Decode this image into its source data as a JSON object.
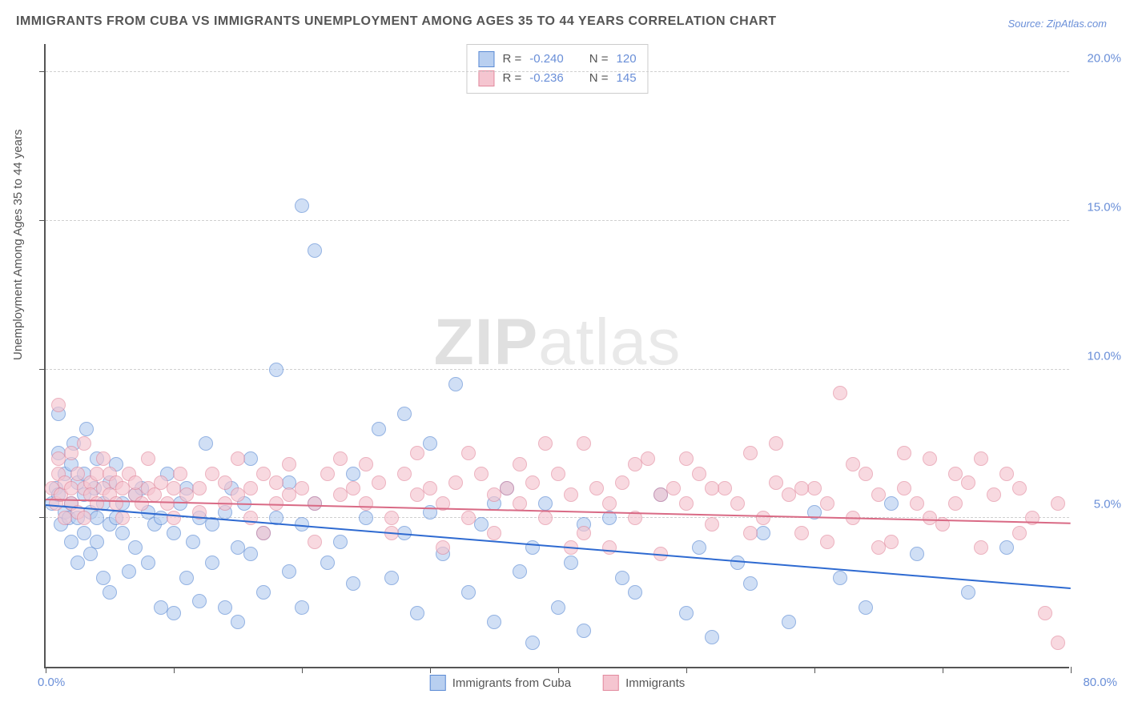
{
  "title": "IMMIGRANTS FROM CUBA VS IMMIGRANTS UNEMPLOYMENT AMONG AGES 35 TO 44 YEARS CORRELATION CHART",
  "source": "Source: ZipAtlas.com",
  "yaxis_label": "Unemployment Among Ages 35 to 44 years",
  "watermark_bold": "ZIP",
  "watermark_thin": "atlas",
  "chart": {
    "type": "scatter",
    "xlim": [
      0,
      80
    ],
    "ylim": [
      0,
      21
    ],
    "x_tick_positions": [
      0,
      10,
      20,
      30,
      40,
      50,
      60,
      70,
      80
    ],
    "y_gridlines": [
      5,
      10,
      15,
      20
    ],
    "y_tick_labels": [
      "5.0%",
      "10.0%",
      "15.0%",
      "20.0%"
    ],
    "x_label_min": "0.0%",
    "x_label_max": "80.0%",
    "background_color": "#ffffff",
    "grid_color": "#d0d0d0",
    "axis_color": "#555555",
    "marker_size": 18,
    "marker_opacity": 0.65
  },
  "series": [
    {
      "name": "Immigrants from Cuba",
      "R_label": "R =",
      "R": "-0.240",
      "N_label": "N =",
      "N": "120",
      "fill_color": "#b8cff0",
      "stroke_color": "#5a8ad4",
      "line_color": "#2e6ad1",
      "trend": {
        "x1": 0,
        "y1": 5.4,
        "x2": 80,
        "y2": 2.6
      },
      "points": [
        [
          0.5,
          5.5
        ],
        [
          0.8,
          6.0
        ],
        [
          1,
          5.8
        ],
        [
          1,
          7.2
        ],
        [
          1,
          8.5
        ],
        [
          1.2,
          4.8
        ],
        [
          1.5,
          5.2
        ],
        [
          1.5,
          6.5
        ],
        [
          1.8,
          5.0
        ],
        [
          2,
          5.5
        ],
        [
          2,
          6.8
        ],
        [
          2,
          4.2
        ],
        [
          2.2,
          7.5
        ],
        [
          2.5,
          5.0
        ],
        [
          2.5,
          6.2
        ],
        [
          2.5,
          3.5
        ],
        [
          3,
          5.8
        ],
        [
          3,
          4.5
        ],
        [
          3,
          6.5
        ],
        [
          3.2,
          8.0
        ],
        [
          3.5,
          5.2
        ],
        [
          3.5,
          3.8
        ],
        [
          3.8,
          6.0
        ],
        [
          4,
          5.0
        ],
        [
          4,
          4.2
        ],
        [
          4,
          7.0
        ],
        [
          4.5,
          5.5
        ],
        [
          4.5,
          3.0
        ],
        [
          5,
          6.2
        ],
        [
          5,
          4.8
        ],
        [
          5,
          2.5
        ],
        [
          5.5,
          5.0
        ],
        [
          5.5,
          6.8
        ],
        [
          6,
          4.5
        ],
        [
          6,
          5.5
        ],
        [
          6.5,
          3.2
        ],
        [
          7,
          5.8
        ],
        [
          7,
          4.0
        ],
        [
          7.5,
          6.0
        ],
        [
          8,
          5.2
        ],
        [
          8,
          3.5
        ],
        [
          8.5,
          4.8
        ],
        [
          9,
          2.0
        ],
        [
          9,
          5.0
        ],
        [
          9.5,
          6.5
        ],
        [
          10,
          4.5
        ],
        [
          10,
          1.8
        ],
        [
          10.5,
          5.5
        ],
        [
          11,
          3.0
        ],
        [
          11,
          6.0
        ],
        [
          11.5,
          4.2
        ],
        [
          12,
          5.0
        ],
        [
          12,
          2.2
        ],
        [
          12.5,
          7.5
        ],
        [
          13,
          4.8
        ],
        [
          13,
          3.5
        ],
        [
          14,
          5.2
        ],
        [
          14,
          2.0
        ],
        [
          14.5,
          6.0
        ],
        [
          15,
          4.0
        ],
        [
          15,
          1.5
        ],
        [
          15.5,
          5.5
        ],
        [
          16,
          3.8
        ],
        [
          16,
          7.0
        ],
        [
          17,
          4.5
        ],
        [
          17,
          2.5
        ],
        [
          18,
          10.0
        ],
        [
          18,
          5.0
        ],
        [
          19,
          3.2
        ],
        [
          19,
          6.2
        ],
        [
          20,
          15.5
        ],
        [
          20,
          4.8
        ],
        [
          20,
          2.0
        ],
        [
          21,
          5.5
        ],
        [
          21,
          14.0
        ],
        [
          22,
          3.5
        ],
        [
          23,
          4.2
        ],
        [
          24,
          6.5
        ],
        [
          24,
          2.8
        ],
        [
          25,
          5.0
        ],
        [
          26,
          8.0
        ],
        [
          27,
          3.0
        ],
        [
          28,
          8.5
        ],
        [
          28,
          4.5
        ],
        [
          29,
          1.8
        ],
        [
          30,
          5.2
        ],
        [
          30,
          7.5
        ],
        [
          31,
          3.8
        ],
        [
          32,
          9.5
        ],
        [
          33,
          2.5
        ],
        [
          34,
          4.8
        ],
        [
          35,
          5.5
        ],
        [
          35,
          1.5
        ],
        [
          36,
          6.0
        ],
        [
          37,
          3.2
        ],
        [
          38,
          4.0
        ],
        [
          38,
          0.8
        ],
        [
          39,
          5.5
        ],
        [
          40,
          2.0
        ],
        [
          41,
          3.5
        ],
        [
          42,
          4.8
        ],
        [
          42,
          1.2
        ],
        [
          44,
          5.0
        ],
        [
          45,
          3.0
        ],
        [
          46,
          2.5
        ],
        [
          48,
          5.8
        ],
        [
          50,
          1.8
        ],
        [
          51,
          4.0
        ],
        [
          52,
          1.0
        ],
        [
          54,
          3.5
        ],
        [
          55,
          2.8
        ],
        [
          56,
          4.5
        ],
        [
          58,
          1.5
        ],
        [
          60,
          5.2
        ],
        [
          62,
          3.0
        ],
        [
          64,
          2.0
        ],
        [
          66,
          5.5
        ],
        [
          68,
          3.8
        ],
        [
          72,
          2.5
        ],
        [
          75,
          4.0
        ]
      ]
    },
    {
      "name": "Immigrants",
      "R_label": "R =",
      "R": "-0.236",
      "N_label": "N =",
      "N": "145",
      "fill_color": "#f5c5d0",
      "stroke_color": "#e28a9e",
      "line_color": "#d96a85",
      "trend": {
        "x1": 0,
        "y1": 5.6,
        "x2": 80,
        "y2": 4.8
      },
      "points": [
        [
          0.5,
          6.0
        ],
        [
          0.8,
          5.5
        ],
        [
          1,
          6.5
        ],
        [
          1,
          7.0
        ],
        [
          1,
          8.8
        ],
        [
          1.2,
          5.8
        ],
        [
          1.5,
          6.2
        ],
        [
          1.5,
          5.0
        ],
        [
          2,
          6.0
        ],
        [
          2,
          7.2
        ],
        [
          2,
          5.5
        ],
        [
          2.5,
          6.5
        ],
        [
          2.5,
          5.2
        ],
        [
          3,
          6.0
        ],
        [
          3,
          7.5
        ],
        [
          3,
          5.0
        ],
        [
          3.5,
          6.2
        ],
        [
          3.5,
          5.8
        ],
        [
          4,
          6.5
        ],
        [
          4,
          5.5
        ],
        [
          4.5,
          6.0
        ],
        [
          4.5,
          7.0
        ],
        [
          5,
          5.8
        ],
        [
          5,
          6.5
        ],
        [
          5.5,
          5.5
        ],
        [
          5.5,
          6.2
        ],
        [
          6,
          6.0
        ],
        [
          6,
          5.0
        ],
        [
          6.5,
          6.5
        ],
        [
          7,
          5.8
        ],
        [
          7,
          6.2
        ],
        [
          7.5,
          5.5
        ],
        [
          8,
          6.0
        ],
        [
          8,
          7.0
        ],
        [
          8.5,
          5.8
        ],
        [
          9,
          6.2
        ],
        [
          9.5,
          5.5
        ],
        [
          10,
          6.0
        ],
        [
          10,
          5.0
        ],
        [
          10.5,
          6.5
        ],
        [
          11,
          5.8
        ],
        [
          12,
          6.0
        ],
        [
          12,
          5.2
        ],
        [
          13,
          6.5
        ],
        [
          14,
          5.5
        ],
        [
          14,
          6.2
        ],
        [
          15,
          5.8
        ],
        [
          16,
          6.0
        ],
        [
          16,
          5.0
        ],
        [
          17,
          6.5
        ],
        [
          18,
          5.5
        ],
        [
          18,
          6.2
        ],
        [
          19,
          5.8
        ],
        [
          20,
          6.0
        ],
        [
          21,
          5.5
        ],
        [
          22,
          6.5
        ],
        [
          23,
          5.8
        ],
        [
          24,
          6.0
        ],
        [
          25,
          5.5
        ],
        [
          26,
          6.2
        ],
        [
          27,
          5.0
        ],
        [
          28,
          6.5
        ],
        [
          29,
          5.8
        ],
        [
          30,
          6.0
        ],
        [
          31,
          5.5
        ],
        [
          32,
          6.2
        ],
        [
          33,
          5.0
        ],
        [
          34,
          6.5
        ],
        [
          35,
          5.8
        ],
        [
          36,
          6.0
        ],
        [
          37,
          5.5
        ],
        [
          38,
          6.2
        ],
        [
          39,
          5.0
        ],
        [
          40,
          6.5
        ],
        [
          41,
          5.8
        ],
        [
          42,
          4.5
        ],
        [
          43,
          6.0
        ],
        [
          44,
          5.5
        ],
        [
          45,
          6.2
        ],
        [
          46,
          5.0
        ],
        [
          47,
          7.0
        ],
        [
          48,
          5.8
        ],
        [
          49,
          6.0
        ],
        [
          50,
          5.5
        ],
        [
          51,
          6.5
        ],
        [
          52,
          4.8
        ],
        [
          53,
          6.0
        ],
        [
          54,
          5.5
        ],
        [
          55,
          7.2
        ],
        [
          56,
          5.0
        ],
        [
          57,
          6.2
        ],
        [
          58,
          5.8
        ],
        [
          59,
          4.5
        ],
        [
          60,
          6.0
        ],
        [
          61,
          5.5
        ],
        [
          62,
          9.2
        ],
        [
          63,
          5.0
        ],
        [
          64,
          6.5
        ],
        [
          65,
          5.8
        ],
        [
          66,
          4.2
        ],
        [
          67,
          6.0
        ],
        [
          68,
          5.5
        ],
        [
          69,
          7.0
        ],
        [
          70,
          4.8
        ],
        [
          71,
          5.5
        ],
        [
          72,
          6.2
        ],
        [
          73,
          4.0
        ],
        [
          74,
          5.8
        ],
        [
          75,
          6.5
        ],
        [
          76,
          4.5
        ],
        [
          77,
          5.0
        ],
        [
          78,
          1.8
        ],
        [
          79,
          5.5
        ],
        [
          79,
          0.8
        ],
        [
          42,
          7.5
        ],
        [
          44,
          4.0
        ],
        [
          46,
          6.8
        ],
        [
          48,
          3.8
        ],
        [
          50,
          7.0
        ],
        [
          52,
          6.0
        ],
        [
          33,
          7.2
        ],
        [
          35,
          4.5
        ],
        [
          37,
          6.8
        ],
        [
          39,
          7.5
        ],
        [
          41,
          4.0
        ],
        [
          15,
          7.0
        ],
        [
          17,
          4.5
        ],
        [
          19,
          6.8
        ],
        [
          21,
          4.2
        ],
        [
          23,
          7.0
        ],
        [
          25,
          6.8
        ],
        [
          27,
          4.5
        ],
        [
          29,
          7.2
        ],
        [
          31,
          4.0
        ],
        [
          55,
          4.5
        ],
        [
          57,
          7.5
        ],
        [
          59,
          6.0
        ],
        [
          61,
          4.2
        ],
        [
          63,
          6.8
        ],
        [
          65,
          4.0
        ],
        [
          67,
          7.2
        ],
        [
          69,
          5.0
        ],
        [
          71,
          6.5
        ],
        [
          73,
          7.0
        ],
        [
          76,
          6.0
        ]
      ]
    }
  ],
  "bottom_legend": {
    "item1": "Immigrants from Cuba",
    "item2": "Immigrants"
  }
}
